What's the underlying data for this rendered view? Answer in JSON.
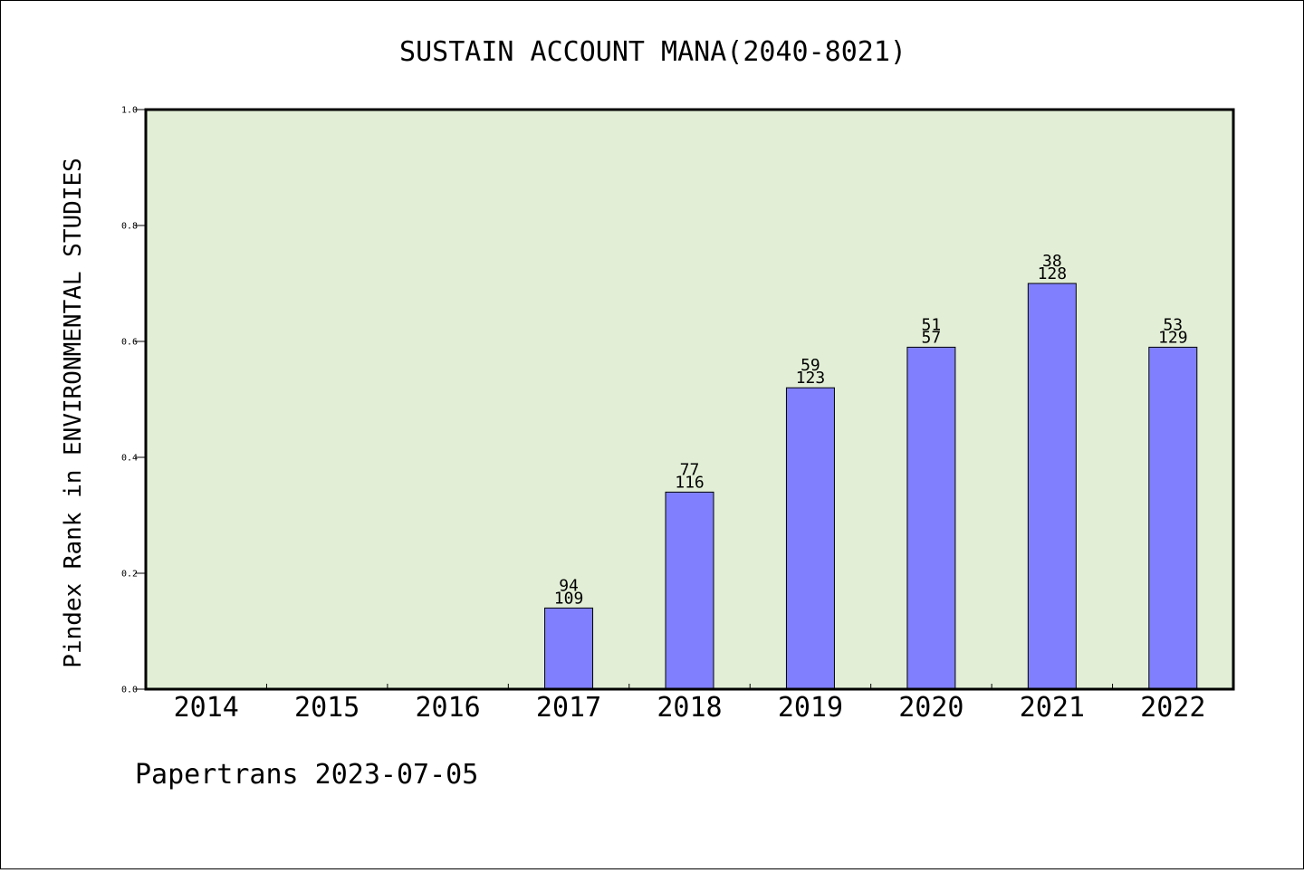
{
  "chart_data": {
    "type": "bar",
    "title": "SUSTAIN ACCOUNT MANA(2040-8021)",
    "xlabel": "",
    "ylabel": "Pindex Rank in ENVIRONMENTAL STUDIES",
    "footer": "Papertrans 2023-07-05",
    "categories": [
      "2014",
      "2015",
      "2016",
      "2017",
      "2018",
      "2019",
      "2020",
      "2021",
      "2022"
    ],
    "values": [
      0,
      0,
      0,
      0.14,
      0.34,
      0.52,
      0.59,
      0.7,
      0.59
    ],
    "label_top": [
      "",
      "",
      "",
      "94",
      "77",
      "59",
      "51",
      "38",
      "53"
    ],
    "label_bottom": [
      "",
      "",
      "",
      "109",
      "116",
      "123",
      "57",
      "128",
      "129"
    ],
    "ylim": [
      0,
      1.0
    ],
    "yticks": [
      "0.0",
      "0.2",
      "0.4",
      "0.6",
      "0.8",
      "1.0"
    ],
    "grid": false,
    "colors": {
      "plot_background": "#e2efd6",
      "bar_fill": "#8080ff",
      "bar_edge": "#000000"
    }
  }
}
